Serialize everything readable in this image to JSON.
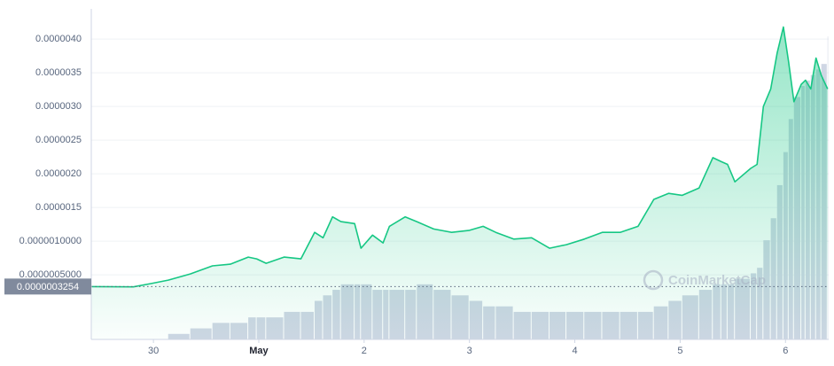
{
  "chart_data": {
    "type": "area",
    "x": [
      -0.59,
      -0.19,
      -0.03,
      0.14,
      0.35,
      0.56,
      0.73,
      0.9,
      0.98,
      1.07,
      1.24,
      1.4,
      1.53,
      1.61,
      1.7,
      1.78,
      1.91,
      1.97,
      2.08,
      2.18,
      2.24,
      2.39,
      2.5,
      2.66,
      2.83,
      3.0,
      3.13,
      3.25,
      3.42,
      3.59,
      3.76,
      3.92,
      4.09,
      4.26,
      4.43,
      4.6,
      4.75,
      4.89,
      5.02,
      5.18,
      5.31,
      5.39,
      5.45,
      5.52,
      5.67,
      5.73,
      5.79,
      5.86,
      5.92,
      5.98,
      6.03,
      6.08,
      6.15,
      6.19,
      6.24,
      6.29,
      6.34,
      6.4
    ],
    "series": [
      {
        "color": "#16c784",
        "values": [
          3.25e-07,
          3.2e-07,
          3.68e-07,
          4.21e-07,
          5.13e-07,
          6.32e-07,
          6.58e-07,
          7.63e-07,
          7.37e-07,
          6.71e-07,
          7.63e-07,
          7.37e-07,
          1.13e-06,
          1.05e-06,
          1.36e-06,
          1.29e-06,
          1.26e-06,
          8.95e-07,
          1.09e-06,
          9.74e-07,
          1.22e-06,
          1.36e-06,
          1.29e-06,
          1.18e-06,
          1.13e-06,
          1.16e-06,
          1.22e-06,
          1.13e-06,
          1.03e-06,
          1.05e-06,
          8.95e-07,
          9.47e-07,
          1.03e-06,
          1.13e-06,
          1.13e-06,
          1.22e-06,
          1.62e-06,
          1.71e-06,
          1.68e-06,
          1.79e-06,
          2.24e-06,
          2.18e-06,
          2.14e-06,
          1.88e-06,
          2.08e-06,
          2.14e-06,
          3e-06,
          3.26e-06,
          3.79e-06,
          4.18e-06,
          3.66e-06,
          3.07e-06,
          3.33e-06,
          3.39e-06,
          3.26e-06,
          3.72e-06,
          3.46e-06,
          3.26e-06
        ]
      },
      {
        "color": "#cfd6e4",
        "axis": "y2",
        "values": [
          0,
          0,
          0,
          1,
          2,
          3,
          3,
          4,
          4,
          4,
          5,
          5,
          7,
          8,
          9,
          10,
          10,
          10,
          9,
          9,
          9,
          9,
          10,
          9,
          8,
          7,
          6,
          6,
          5,
          5,
          5,
          5,
          5,
          5,
          5,
          5,
          6,
          7,
          8,
          9,
          10,
          10,
          10,
          11,
          12,
          13,
          18,
          22,
          28,
          34,
          40,
          44,
          46,
          47,
          48,
          49,
          50,
          55
        ]
      }
    ],
    "xlim": [
      -0.59,
      6.41
    ],
    "xticks": [
      {
        "value": 0,
        "label": "30"
      },
      {
        "value": 1,
        "label": "May"
      },
      2,
      3,
      4,
      5,
      6
    ],
    "ylim": [
      -4.6e-07,
      4.45e-06
    ],
    "yticks": [
      {
        "value": 5e-07,
        "label": "0.0000005000"
      },
      {
        "value": 1e-06,
        "label": "0.0000010000"
      },
      {
        "value": 1.5e-06,
        "label": "0.0000015"
      },
      {
        "value": 2e-06,
        "label": "0.0000020"
      },
      {
        "value": 2.5e-06,
        "label": "0.0000025"
      },
      {
        "value": 3e-06,
        "label": "0.0000030"
      },
      {
        "value": 3.5e-06,
        "label": "0.0000035"
      },
      {
        "value": 4e-06,
        "label": "0.0000040"
      }
    ],
    "y2lim": [
      0,
      60
    ],
    "grid": true,
    "reference_line": {
      "value": 3.254e-07,
      "value_label": "0.0000003254"
    },
    "watermark": "CoinMarketCap"
  }
}
